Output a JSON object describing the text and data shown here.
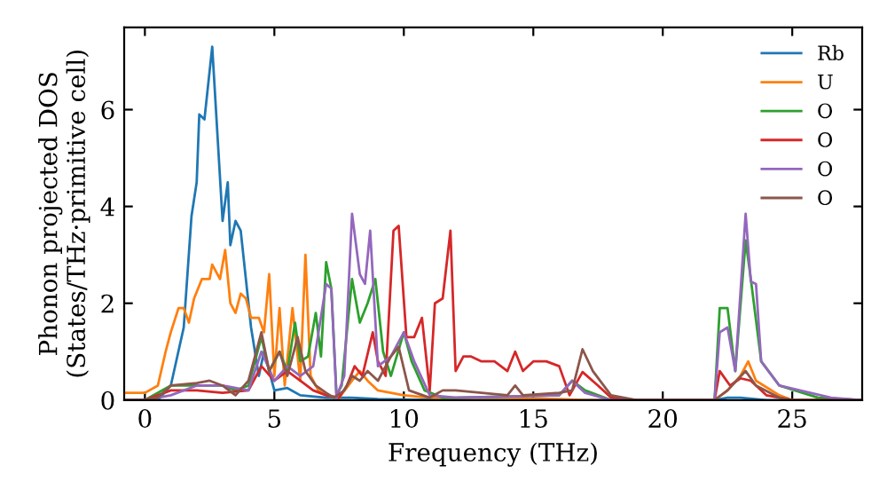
{
  "chart_data": {
    "type": "line",
    "xlabel": "Frequency (THz)",
    "ylabel": "Phonon projected DOS\n(States/THz·primitive cell)",
    "xlim": [
      -0.8,
      27.7
    ],
    "ylim": [
      0,
      7.7
    ],
    "xticks": [
      0,
      5,
      10,
      15,
      20,
      25
    ],
    "yticks": [
      0,
      2,
      4,
      6
    ],
    "grid": false,
    "legend": "top right",
    "marker": "none",
    "line_style": "solid",
    "series": [
      {
        "name": "Rb",
        "color": "#1f77b4",
        "x": [
          -0.8,
          0.5,
          1.0,
          1.5,
          1.8,
          2.0,
          2.1,
          2.3,
          2.6,
          2.8,
          3.0,
          3.2,
          3.3,
          3.5,
          3.7,
          3.9,
          4.1,
          4.4,
          4.6,
          4.8,
          5.0,
          5.5,
          6.0,
          7.0,
          8.0,
          9.0,
          10.0,
          12.0,
          22.0,
          22.5,
          23.0,
          24.0,
          27.7
        ],
        "values": [
          0,
          0,
          0.3,
          1.5,
          3.8,
          4.5,
          5.9,
          5.8,
          7.3,
          5.5,
          3.7,
          4.5,
          3.2,
          3.7,
          3.5,
          2.5,
          1.5,
          0.5,
          1.0,
          0.6,
          0.2,
          0.25,
          0.1,
          0.05,
          0.05,
          0.02,
          0.01,
          0,
          0,
          0.05,
          0.05,
          0,
          0
        ]
      },
      {
        "name": "U",
        "color": "#ff7f0e",
        "x": [
          -0.8,
          0.0,
          0.5,
          0.8,
          1.0,
          1.3,
          1.5,
          1.7,
          1.9,
          2.2,
          2.5,
          2.6,
          2.9,
          3.0,
          3.1,
          3.3,
          3.5,
          3.7,
          3.9,
          4.1,
          4.4,
          4.6,
          4.8,
          5.0,
          5.2,
          5.4,
          5.7,
          6.0,
          6.2,
          6.4,
          6.7,
          7.0,
          7.5,
          8.0,
          8.3,
          8.6,
          9.0,
          9.5,
          10.0,
          11.0,
          14.0,
          16.0,
          17.0,
          22.0,
          22.5,
          23.0,
          23.3,
          23.6,
          24.5,
          25.0,
          27.7
        ],
        "values": [
          0.15,
          0.15,
          0.3,
          1.0,
          1.4,
          1.9,
          1.9,
          1.6,
          2.1,
          2.5,
          2.5,
          2.8,
          2.5,
          2.8,
          3.1,
          2.0,
          1.8,
          2.2,
          2.1,
          1.7,
          1.7,
          1.4,
          2.6,
          0.5,
          1.9,
          0.3,
          1.9,
          0.4,
          3.0,
          0.5,
          0.2,
          0.1,
          0.05,
          0.4,
          0.6,
          0.4,
          0.2,
          0.15,
          0.1,
          0.05,
          0.05,
          0.02,
          0,
          0,
          0.2,
          0.5,
          0.8,
          0.4,
          0.1,
          0,
          0
        ]
      },
      {
        "name": "O",
        "color": "#2ca02c",
        "x": [
          -0.8,
          0.0,
          1.0,
          2.0,
          3.0,
          3.5,
          4.0,
          4.5,
          4.8,
          5.2,
          5.5,
          5.8,
          6.0,
          6.3,
          6.6,
          6.8,
          7.0,
          7.2,
          7.4,
          7.6,
          8.0,
          8.3,
          8.6,
          8.9,
          9.2,
          9.5,
          10.0,
          10.3,
          10.8,
          11.5,
          12.0,
          16.0,
          16.5,
          17.0,
          18.0,
          22.0,
          22.2,
          22.5,
          22.8,
          23.2,
          23.4,
          23.8,
          24.5,
          26.0,
          27.7
        ],
        "values": [
          0,
          0,
          0.3,
          0.3,
          0.3,
          0.2,
          0.3,
          1.3,
          0.6,
          1.0,
          0.6,
          1.6,
          0.8,
          0.9,
          1.8,
          0.9,
          2.85,
          2.3,
          0.1,
          0.3,
          2.5,
          1.6,
          2.0,
          2.5,
          1.0,
          0.5,
          1.4,
          0.8,
          0.2,
          0.05,
          0.05,
          0.1,
          0.4,
          0.2,
          0,
          0,
          1.9,
          1.9,
          0.6,
          3.3,
          2.5,
          0.8,
          0.3,
          0.05,
          0
        ]
      },
      {
        "name": "O",
        "color": "#d62728",
        "x": [
          -0.8,
          0.0,
          1.0,
          2.0,
          3.0,
          4.0,
          4.5,
          5.0,
          5.5,
          6.0,
          6.5,
          7.0,
          7.5,
          7.8,
          8.1,
          8.4,
          8.8,
          9.0,
          9.3,
          9.6,
          9.8,
          10.1,
          10.4,
          10.7,
          11.0,
          11.2,
          11.5,
          11.8,
          12.0,
          12.3,
          12.6,
          13.0,
          13.5,
          14.0,
          14.3,
          14.6,
          15.0,
          15.5,
          16.0,
          16.4,
          16.9,
          17.5,
          18.0,
          19.0,
          22.0,
          22.2,
          22.6,
          23.0,
          23.4,
          24.0,
          25.0,
          27.7
        ],
        "values": [
          0,
          0,
          0.2,
          0.2,
          0.15,
          0.2,
          0.7,
          0.4,
          0.6,
          0.4,
          0.2,
          0.1,
          0.05,
          0.3,
          0.7,
          0.5,
          1.4,
          0.8,
          0.5,
          3.5,
          3.6,
          1.3,
          1.3,
          1.7,
          0.2,
          2.0,
          2.1,
          3.5,
          0.6,
          0.9,
          0.9,
          0.8,
          0.8,
          0.6,
          1.0,
          0.6,
          0.8,
          0.8,
          0.7,
          0.1,
          0.58,
          0.3,
          0.05,
          0,
          0,
          0.6,
          0.3,
          0.45,
          0.4,
          0.1,
          0,
          0
        ]
      },
      {
        "name": "O",
        "color": "#9467bd",
        "x": [
          -0.8,
          0.0,
          1.0,
          2.0,
          3.0,
          4.0,
          4.5,
          5.0,
          5.5,
          6.0,
          6.5,
          7.0,
          7.2,
          7.4,
          7.7,
          8.0,
          8.3,
          8.5,
          8.7,
          9.0,
          9.5,
          10.0,
          10.4,
          11.0,
          12.0,
          16.0,
          16.5,
          17.0,
          18.0,
          22.0,
          22.2,
          22.5,
          22.8,
          23.2,
          23.4,
          23.6,
          23.8,
          24.5,
          26.5,
          27.7
        ],
        "values": [
          0,
          0,
          0.1,
          0.3,
          0.3,
          0.2,
          1.0,
          0.4,
          0.7,
          0.5,
          0.7,
          2.4,
          2.3,
          0.05,
          0.5,
          3.85,
          2.6,
          2.4,
          3.5,
          0.7,
          0.9,
          1.4,
          0.8,
          0.1,
          0.05,
          0.1,
          0.4,
          0.15,
          0,
          0,
          1.4,
          1.5,
          0.6,
          3.85,
          2.45,
          2.4,
          0.8,
          0.3,
          0.05,
          0
        ]
      },
      {
        "name": "O",
        "color": "#8c564b",
        "x": [
          -0.8,
          0.0,
          0.5,
          1.0,
          2.0,
          2.5,
          3.0,
          3.5,
          4.0,
          4.5,
          4.8,
          5.2,
          5.5,
          5.9,
          6.2,
          6.6,
          7.0,
          7.3,
          7.7,
          8.0,
          8.3,
          8.6,
          9.0,
          9.5,
          9.8,
          10.2,
          11.0,
          11.5,
          12.0,
          13.0,
          14.0,
          14.3,
          14.6,
          16.0,
          16.5,
          16.9,
          17.3,
          18.0,
          19.0,
          22.0,
          22.5,
          23.2,
          23.6,
          24.5,
          25.0,
          27.7
        ],
        "values": [
          0,
          0,
          0.05,
          0.3,
          0.35,
          0.4,
          0.3,
          0.1,
          0.4,
          1.4,
          0.6,
          1.0,
          0.5,
          1.3,
          0.6,
          0.3,
          0.15,
          0.05,
          0.2,
          0.5,
          0.4,
          0.6,
          0.4,
          0.9,
          1.1,
          0.2,
          0.05,
          0.2,
          0.2,
          0.15,
          0.1,
          0.3,
          0.1,
          0.15,
          0.2,
          1.05,
          0.6,
          0.1,
          0,
          0,
          0.2,
          0.6,
          0.3,
          0.05,
          0,
          0
        ]
      }
    ]
  }
}
